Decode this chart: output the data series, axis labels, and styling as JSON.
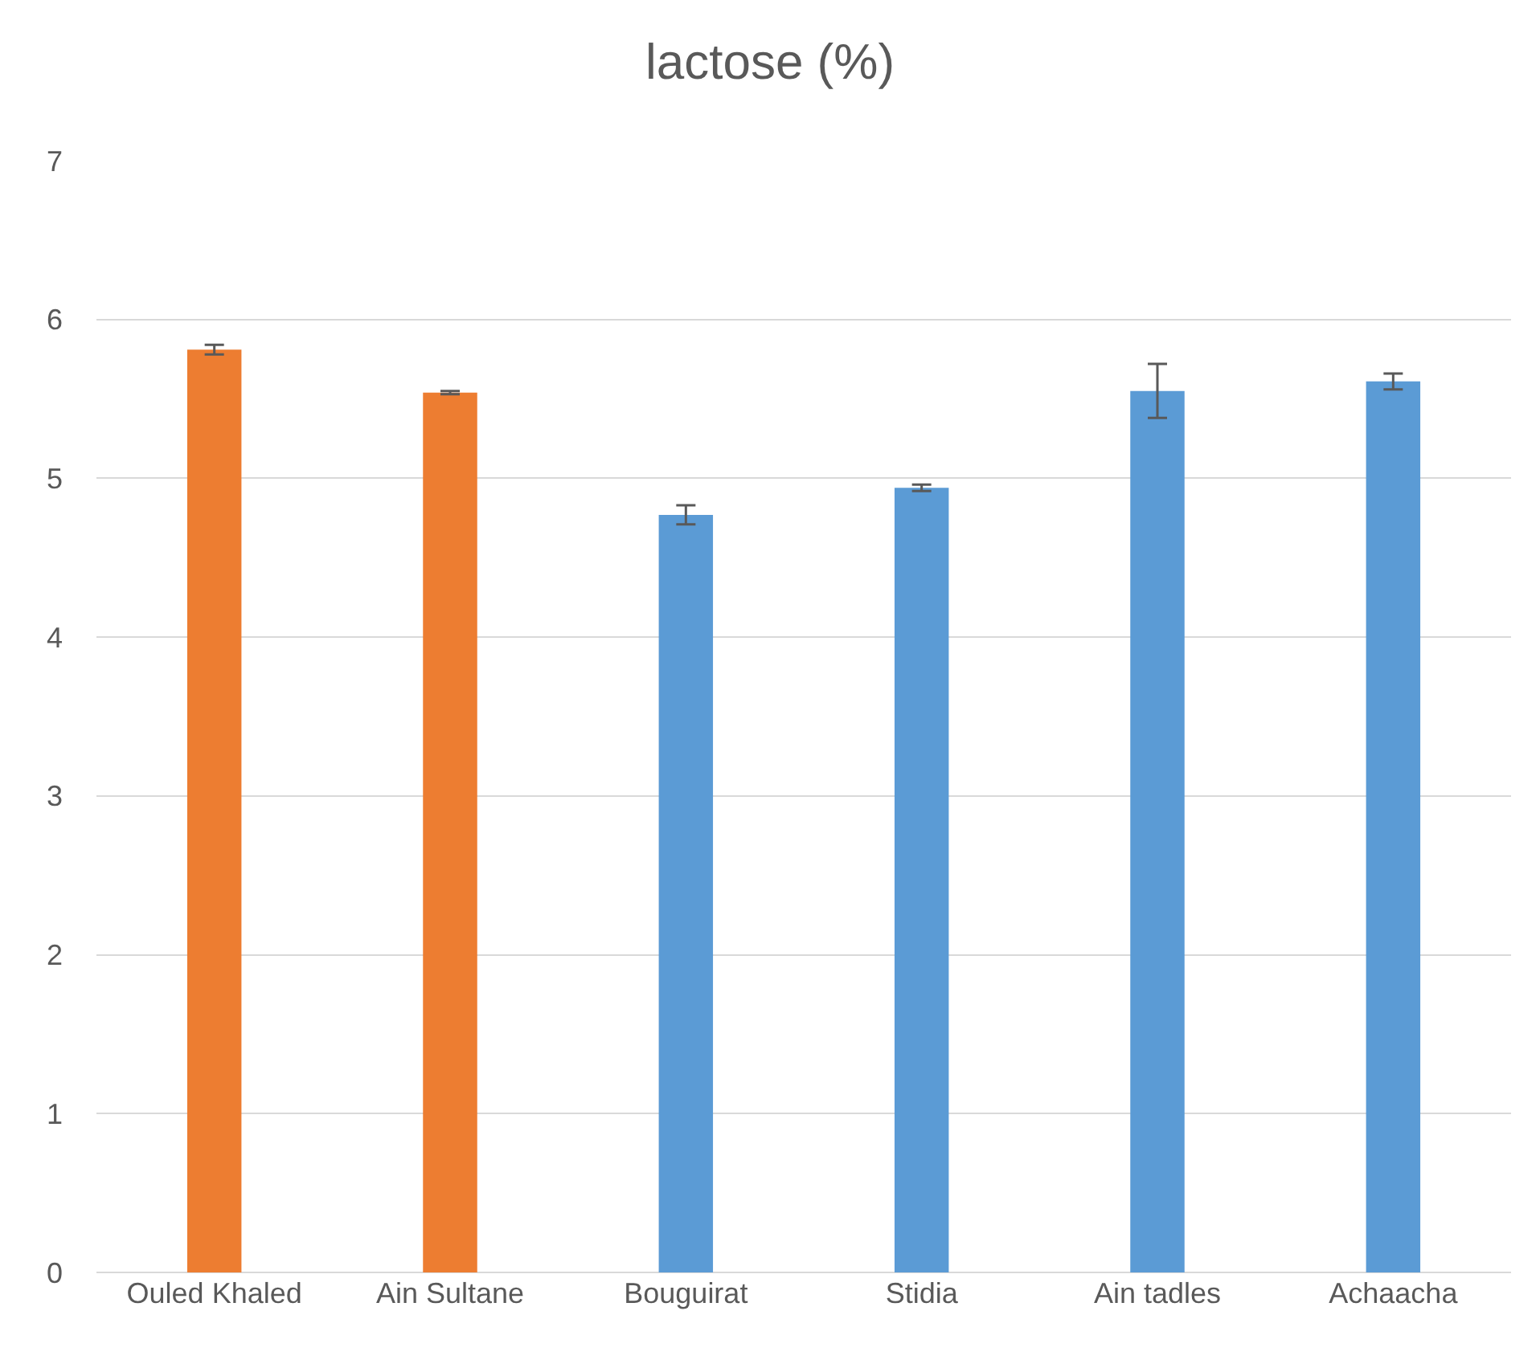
{
  "chart_data": {
    "type": "bar",
    "title": "lactose (%)",
    "categories": [
      "Ouled Khaled",
      "Ain Sultane",
      "Bouguirat",
      "Stidia",
      "Ain tadles",
      "Achaacha"
    ],
    "values": [
      5.81,
      5.54,
      4.77,
      4.94,
      5.55,
      5.61
    ],
    "colors": [
      "#ed7d31",
      "#ed7d31",
      "#5b9bd5",
      "#5b9bd5",
      "#5b9bd5",
      "#5b9bd5"
    ],
    "errors": [
      0.03,
      0.01,
      0.06,
      0.02,
      0.17,
      0.05
    ],
    "ylim": [
      0,
      7
    ],
    "yticks": [
      0,
      1,
      2,
      3,
      4,
      5,
      6,
      7
    ],
    "grid": "y",
    "legend": false
  }
}
